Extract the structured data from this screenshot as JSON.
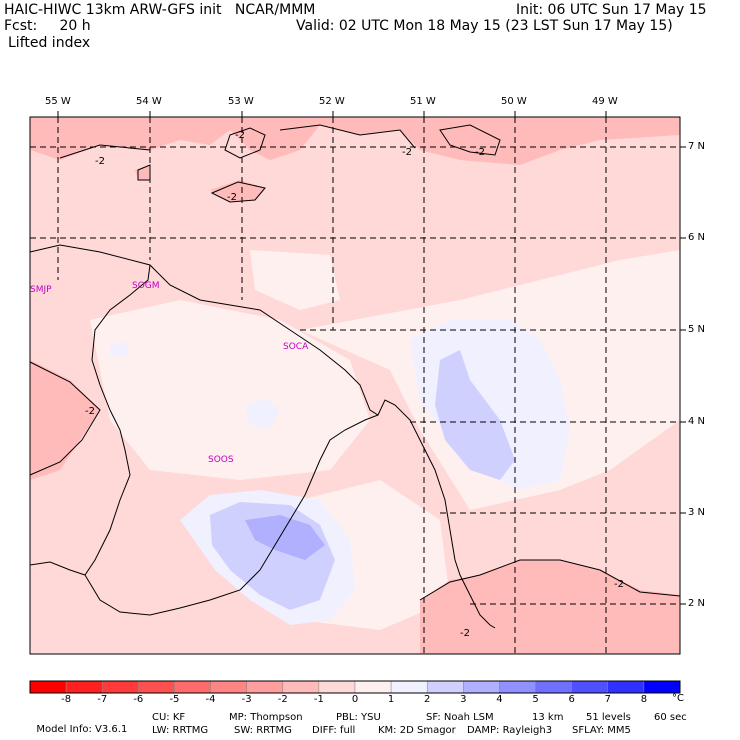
{
  "header": {
    "title_left": "HAIC-HIWC 13km ARW-GFS init   NCAR/MMM",
    "init_time": "Init: 06 UTC Sun 17 May 15",
    "fcst_label": "Fcst:",
    "fcst_value": "20 h",
    "valid_time": "Valid: 02 UTC Mon 18 May 15 (23 LST Sun 17 May 15)",
    "field_name": "Lifted index"
  },
  "map": {
    "lon_labels": [
      "55 W",
      "54 W",
      "53 W",
      "52 W",
      "51 W",
      "50 W",
      "49 W"
    ],
    "lat_labels": [
      "7 N",
      "6 N",
      "5 N",
      "4 N",
      "3 N",
      "2 N"
    ],
    "stations": [
      "SMJP",
      "SOGM",
      "SOCA",
      "SOOS"
    ],
    "contour_label": "-2",
    "station_color": "#c000c0"
  },
  "colorbar": {
    "ticks": [
      "-8",
      "-7",
      "-6",
      "-5",
      "-4",
      "-3",
      "-2",
      "-1",
      "0",
      "1",
      "2",
      "3",
      "4",
      "5",
      "6",
      "7",
      "8"
    ],
    "unit": "°C",
    "colors": [
      "#ff0000",
      "#ff2020",
      "#ff3a3a",
      "#ff5050",
      "#ff6a6a",
      "#ff8484",
      "#ff9e9e",
      "#ffbaba",
      "#ffd8d8",
      "#fff0f0",
      "#f0f0ff",
      "#d0d0ff",
      "#b0b0ff",
      "#9090ff",
      "#7070ff",
      "#5050ff",
      "#3030ff",
      "#0000ff"
    ]
  },
  "footer": {
    "line1_a": "Model Info: V3.6.1",
    "line1_b": "CU: KF",
    "line1_c": "MP: Thompson",
    "line1_d": "PBL: YSU",
    "line1_e": "SF: Noah LSM",
    "line1_f": "13 km",
    "line1_g": "51 levels",
    "line1_h": "60 sec",
    "line2_a": "LW: RRTMG",
    "line2_b": "SW: RRTMG",
    "line2_c": "DIFF: full",
    "line2_d": "KM: 2D Smagor",
    "line2_e": "DAMP: Rayleigh3",
    "line2_f": "SFLAY: MM5"
  }
}
